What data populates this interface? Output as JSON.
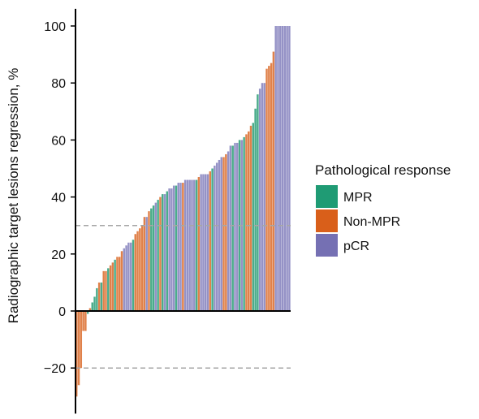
{
  "chart_data": {
    "type": "bar",
    "title": "",
    "xlabel": "",
    "ylabel": "Radiographic target lesions regression, %",
    "ylim": [
      -36,
      106
    ],
    "yticks": [
      -20,
      0,
      20,
      40,
      60,
      80,
      100
    ],
    "ytick_labels": [
      "−20",
      "0",
      "20",
      "40",
      "60",
      "80",
      "100"
    ],
    "reference_lines": [
      30,
      -20
    ],
    "grid": false,
    "legend": {
      "title": "Pathological response",
      "placement": "right",
      "entries": [
        {
          "key": "MPR",
          "label": "MPR",
          "color": "#1f9b74"
        },
        {
          "key": "Non-MPR",
          "label": "Non-MPR",
          "color": "#d95f1a"
        },
        {
          "key": "pCR",
          "label": "pCR",
          "color": "#7570b3"
        }
      ]
    },
    "bar_colors": {
      "MPR": "#4aac8b",
      "Non-MPR": "#e0814a",
      "pCR": "#9592c6"
    },
    "bars": [
      {
        "v": -30,
        "g": "Non-MPR"
      },
      {
        "v": -26,
        "g": "Non-MPR"
      },
      {
        "v": -20,
        "g": "Non-MPR"
      },
      {
        "v": -7,
        "g": "Non-MPR"
      },
      {
        "v": -7,
        "g": "Non-MPR"
      },
      {
        "v": -1,
        "g": "MPR"
      },
      {
        "v": 1,
        "g": "Non-MPR"
      },
      {
        "v": 3,
        "g": "MPR"
      },
      {
        "v": 5,
        "g": "MPR"
      },
      {
        "v": 8,
        "g": "MPR"
      },
      {
        "v": 10,
        "g": "Non-MPR"
      },
      {
        "v": 10,
        "g": "MPR"
      },
      {
        "v": 14,
        "g": "Non-MPR"
      },
      {
        "v": 14,
        "g": "Non-MPR"
      },
      {
        "v": 15,
        "g": "MPR"
      },
      {
        "v": 16,
        "g": "Non-MPR"
      },
      {
        "v": 17,
        "g": "Non-MPR"
      },
      {
        "v": 18,
        "g": "MPR"
      },
      {
        "v": 19,
        "g": "Non-MPR"
      },
      {
        "v": 19,
        "g": "Non-MPR"
      },
      {
        "v": 21,
        "g": "Non-MPR"
      },
      {
        "v": 22,
        "g": "pCR"
      },
      {
        "v": 23,
        "g": "pCR"
      },
      {
        "v": 24,
        "g": "pCR"
      },
      {
        "v": 24,
        "g": "pCR"
      },
      {
        "v": 25,
        "g": "MPR"
      },
      {
        "v": 27,
        "g": "Non-MPR"
      },
      {
        "v": 28,
        "g": "Non-MPR"
      },
      {
        "v": 29,
        "g": "Non-MPR"
      },
      {
        "v": 30,
        "g": "Non-MPR"
      },
      {
        "v": 33,
        "g": "Non-MPR"
      },
      {
        "v": 33,
        "g": "pCR"
      },
      {
        "v": 35,
        "g": "Non-MPR"
      },
      {
        "v": 36,
        "g": "MPR"
      },
      {
        "v": 37,
        "g": "MPR"
      },
      {
        "v": 38,
        "g": "pCR"
      },
      {
        "v": 39,
        "g": "MPR"
      },
      {
        "v": 40,
        "g": "Non-MPR"
      },
      {
        "v": 41,
        "g": "MPR"
      },
      {
        "v": 41,
        "g": "pCR"
      },
      {
        "v": 42,
        "g": "MPR"
      },
      {
        "v": 43,
        "g": "pCR"
      },
      {
        "v": 43,
        "g": "pCR"
      },
      {
        "v": 44,
        "g": "pCR"
      },
      {
        "v": 44,
        "g": "MPR"
      },
      {
        "v": 45,
        "g": "pCR"
      },
      {
        "v": 45,
        "g": "pCR"
      },
      {
        "v": 45,
        "g": "Non-MPR"
      },
      {
        "v": 46,
        "g": "pCR"
      },
      {
        "v": 46,
        "g": "pCR"
      },
      {
        "v": 46,
        "g": "pCR"
      },
      {
        "v": 46,
        "g": "pCR"
      },
      {
        "v": 46,
        "g": "pCR"
      },
      {
        "v": 46,
        "g": "MPR"
      },
      {
        "v": 47,
        "g": "Non-MPR"
      },
      {
        "v": 48,
        "g": "pCR"
      },
      {
        "v": 48,
        "g": "pCR"
      },
      {
        "v": 48,
        "g": "pCR"
      },
      {
        "v": 48,
        "g": "pCR"
      },
      {
        "v": 49,
        "g": "Non-MPR"
      },
      {
        "v": 50,
        "g": "MPR"
      },
      {
        "v": 51,
        "g": "pCR"
      },
      {
        "v": 52,
        "g": "pCR"
      },
      {
        "v": 53,
        "g": "pCR"
      },
      {
        "v": 54,
        "g": "pCR"
      },
      {
        "v": 54,
        "g": "Non-MPR"
      },
      {
        "v": 55,
        "g": "Non-MPR"
      },
      {
        "v": 56,
        "g": "pCR"
      },
      {
        "v": 58,
        "g": "pCR"
      },
      {
        "v": 58,
        "g": "MPR"
      },
      {
        "v": 59,
        "g": "pCR"
      },
      {
        "v": 59,
        "g": "pCR"
      },
      {
        "v": 60,
        "g": "MPR"
      },
      {
        "v": 60,
        "g": "pCR"
      },
      {
        "v": 61,
        "g": "MPR"
      },
      {
        "v": 62,
        "g": "Non-MPR"
      },
      {
        "v": 63,
        "g": "Non-MPR"
      },
      {
        "v": 65,
        "g": "Non-MPR"
      },
      {
        "v": 66,
        "g": "MPR"
      },
      {
        "v": 71,
        "g": "MPR"
      },
      {
        "v": 76,
        "g": "MPR"
      },
      {
        "v": 78,
        "g": "pCR"
      },
      {
        "v": 80,
        "g": "pCR"
      },
      {
        "v": 80,
        "g": "pCR"
      },
      {
        "v": 85,
        "g": "Non-MPR"
      },
      {
        "v": 86,
        "g": "Non-MPR"
      },
      {
        "v": 87,
        "g": "Non-MPR"
      },
      {
        "v": 91,
        "g": "Non-MPR"
      },
      {
        "v": 100,
        "g": "pCR"
      },
      {
        "v": 100,
        "g": "pCR"
      },
      {
        "v": 100,
        "g": "pCR"
      },
      {
        "v": 100,
        "g": "pCR"
      },
      {
        "v": 100,
        "g": "pCR"
      },
      {
        "v": 100,
        "g": "pCR"
      },
      {
        "v": 100,
        "g": "pCR"
      }
    ]
  }
}
